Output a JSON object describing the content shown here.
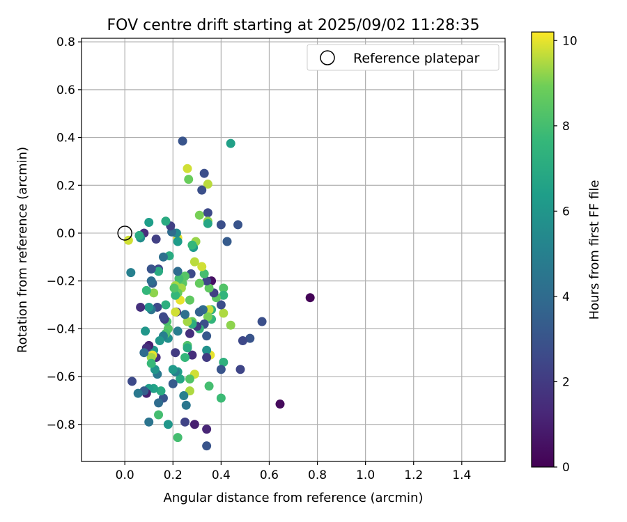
{
  "chart_data": {
    "type": "scatter",
    "title": "FOV centre drift starting at 2025/09/02 11:28:35",
    "xlabel": "Angular distance from reference (arcmin)",
    "ylabel": "Rotation from reference (arcmin)",
    "xlim": [
      -0.18,
      1.58
    ],
    "ylim": [
      -0.955,
      0.815
    ],
    "x_ticks": [
      0.0,
      0.2,
      0.4,
      0.6,
      0.8,
      1.0,
      1.2,
      1.4
    ],
    "x_tick_labels": [
      "0.0",
      "0.2",
      "0.4",
      "0.6",
      "0.8",
      "1.0",
      "1.2",
      "1.4"
    ],
    "y_ticks": [
      0.8,
      0.6,
      0.4,
      0.2,
      0.0,
      -0.2,
      -0.4,
      -0.6,
      -0.8
    ],
    "y_tick_labels": [
      "0.8",
      "0.6",
      "0.4",
      "0.2",
      "0.0",
      "−0.2",
      "−0.4",
      "−0.6",
      "−0.8"
    ],
    "grid": true,
    "legend": {
      "position": "top-right",
      "entries": [
        "Reference platepar"
      ]
    },
    "reference_point": {
      "x": 0.0,
      "y": 0.0,
      "label": "Reference platepar"
    },
    "colorbar": {
      "label": "Hours from first FF file",
      "min": 0,
      "max": 10.2,
      "ticks": [
        0,
        2,
        4,
        6,
        8,
        10
      ],
      "tick_labels": [
        "0",
        "2",
        "4",
        "6",
        "8",
        "10"
      ],
      "colormap": "viridis"
    },
    "points": [
      {
        "x": 0.77,
        "y": -0.27,
        "h": 0.1
      },
      {
        "x": 0.645,
        "y": -0.715,
        "h": 0.3
      },
      {
        "x": 0.57,
        "y": -0.37,
        "h": 2.8
      },
      {
        "x": 0.52,
        "y": -0.44,
        "h": 3.0
      },
      {
        "x": 0.49,
        "y": -0.45,
        "h": 2.5
      },
      {
        "x": 0.48,
        "y": -0.57,
        "h": 2.4
      },
      {
        "x": 0.47,
        "y": 0.035,
        "h": 3.0
      },
      {
        "x": 0.44,
        "y": 0.375,
        "h": 6.5
      },
      {
        "x": 0.44,
        "y": -0.385,
        "h": 9.2
      },
      {
        "x": 0.425,
        "y": -0.035,
        "h": 3.3
      },
      {
        "x": 0.41,
        "y": -0.23,
        "h": 8.3
      },
      {
        "x": 0.41,
        "y": -0.26,
        "h": 7.5
      },
      {
        "x": 0.41,
        "y": -0.335,
        "h": 9.5
      },
      {
        "x": 0.41,
        "y": -0.54,
        "h": 7.3
      },
      {
        "x": 0.4,
        "y": 0.035,
        "h": 2.8
      },
      {
        "x": 0.4,
        "y": -0.3,
        "h": 2.7
      },
      {
        "x": 0.4,
        "y": -0.57,
        "h": 3.0
      },
      {
        "x": 0.4,
        "y": -0.69,
        "h": 7.8
      },
      {
        "x": 0.38,
        "y": -0.27,
        "h": 8.5
      },
      {
        "x": 0.37,
        "y": -0.25,
        "h": 2.2
      },
      {
        "x": 0.36,
        "y": -0.2,
        "h": 0.5
      },
      {
        "x": 0.36,
        "y": -0.32,
        "h": 7.4
      },
      {
        "x": 0.36,
        "y": -0.36,
        "h": 7.5
      },
      {
        "x": 0.355,
        "y": -0.51,
        "h": 10.0
      },
      {
        "x": 0.35,
        "y": -0.23,
        "h": 8.6
      },
      {
        "x": 0.35,
        "y": -0.32,
        "h": 9.7
      },
      {
        "x": 0.35,
        "y": -0.64,
        "h": 8.0
      },
      {
        "x": 0.345,
        "y": 0.205,
        "h": 9.6
      },
      {
        "x": 0.345,
        "y": 0.085,
        "h": 2.6
      },
      {
        "x": 0.345,
        "y": 0.05,
        "h": 9.2
      },
      {
        "x": 0.345,
        "y": 0.04,
        "h": 6.8
      },
      {
        "x": 0.345,
        "y": -0.35,
        "h": 9.0
      },
      {
        "x": 0.34,
        "y": -0.2,
        "h": 2.4
      },
      {
        "x": 0.34,
        "y": -0.43,
        "h": 3.2
      },
      {
        "x": 0.34,
        "y": -0.49,
        "h": 5.8
      },
      {
        "x": 0.34,
        "y": -0.52,
        "h": 2.0
      },
      {
        "x": 0.34,
        "y": -0.82,
        "h": 1.2
      },
      {
        "x": 0.34,
        "y": -0.89,
        "h": 3.0
      },
      {
        "x": 0.33,
        "y": 0.25,
        "h": 2.8
      },
      {
        "x": 0.33,
        "y": -0.17,
        "h": 8.0
      },
      {
        "x": 0.33,
        "y": -0.38,
        "h": 2.8
      },
      {
        "x": 0.325,
        "y": -0.32,
        "h": 4.0
      },
      {
        "x": 0.32,
        "y": 0.18,
        "h": 2.8
      },
      {
        "x": 0.32,
        "y": -0.14,
        "h": 9.8
      },
      {
        "x": 0.31,
        "y": 0.075,
        "h": 9.0
      },
      {
        "x": 0.31,
        "y": -0.21,
        "h": 8.7
      },
      {
        "x": 0.31,
        "y": -0.33,
        "h": 3.6
      },
      {
        "x": 0.31,
        "y": -0.4,
        "h": 7.6
      },
      {
        "x": 0.3,
        "y": -0.39,
        "h": 2.0
      },
      {
        "x": 0.295,
        "y": -0.035,
        "h": 9.3
      },
      {
        "x": 0.29,
        "y": -0.12,
        "h": 9.6
      },
      {
        "x": 0.29,
        "y": -0.59,
        "h": 9.8
      },
      {
        "x": 0.29,
        "y": -0.8,
        "h": 1.0
      },
      {
        "x": 0.285,
        "y": -0.06,
        "h": 6.2
      },
      {
        "x": 0.28,
        "y": -0.05,
        "h": 7.6
      },
      {
        "x": 0.28,
        "y": -0.37,
        "h": 8.8
      },
      {
        "x": 0.28,
        "y": -0.38,
        "h": 7.2
      },
      {
        "x": 0.28,
        "y": -0.51,
        "h": 1.5
      },
      {
        "x": 0.275,
        "y": -0.17,
        "h": 2.6
      },
      {
        "x": 0.27,
        "y": -0.28,
        "h": 8.6
      },
      {
        "x": 0.27,
        "y": -0.42,
        "h": 1.6
      },
      {
        "x": 0.27,
        "y": -0.61,
        "h": 8.3
      },
      {
        "x": 0.27,
        "y": -0.66,
        "h": 9.5
      },
      {
        "x": 0.265,
        "y": 0.225,
        "h": 8.8
      },
      {
        "x": 0.26,
        "y": -0.37,
        "h": 9.4
      },
      {
        "x": 0.26,
        "y": -0.47,
        "h": 8.2
      },
      {
        "x": 0.26,
        "y": -0.48,
        "h": 7.0
      },
      {
        "x": 0.26,
        "y": 0.27,
        "h": 9.8
      },
      {
        "x": 0.255,
        "y": -0.72,
        "h": 4.5
      },
      {
        "x": 0.25,
        "y": -0.18,
        "h": 8.4
      },
      {
        "x": 0.25,
        "y": -0.34,
        "h": 4.2
      },
      {
        "x": 0.25,
        "y": -0.52,
        "h": 7.6
      },
      {
        "x": 0.25,
        "y": -0.79,
        "h": 2.3
      },
      {
        "x": 0.245,
        "y": -0.68,
        "h": 5.0
      },
      {
        "x": 0.24,
        "y": 0.385,
        "h": 3.0
      },
      {
        "x": 0.24,
        "y": -0.21,
        "h": 8.5
      },
      {
        "x": 0.235,
        "y": -0.23,
        "h": 9.4
      },
      {
        "x": 0.23,
        "y": -0.28,
        "h": 10.0
      },
      {
        "x": 0.23,
        "y": -0.61,
        "h": 6.8
      },
      {
        "x": 0.225,
        "y": -0.19,
        "h": 8.0
      },
      {
        "x": 0.22,
        "y": -0.02,
        "h": 10.0
      },
      {
        "x": 0.22,
        "y": -0.035,
        "h": 6.3
      },
      {
        "x": 0.22,
        "y": -0.16,
        "h": 4.0
      },
      {
        "x": 0.22,
        "y": -0.25,
        "h": 8.8
      },
      {
        "x": 0.22,
        "y": -0.41,
        "h": 4.8
      },
      {
        "x": 0.22,
        "y": -0.58,
        "h": 6.4
      },
      {
        "x": 0.22,
        "y": -0.855,
        "h": 8.0
      },
      {
        "x": 0.215,
        "y": 0.0,
        "h": 5.5
      },
      {
        "x": 0.215,
        "y": -0.33,
        "h": 2.0
      },
      {
        "x": 0.21,
        "y": -0.22,
        "h": 9.4
      },
      {
        "x": 0.21,
        "y": -0.26,
        "h": 7.6
      },
      {
        "x": 0.21,
        "y": -0.33,
        "h": 9.8
      },
      {
        "x": 0.21,
        "y": -0.5,
        "h": 2.0
      },
      {
        "x": 0.21,
        "y": -0.58,
        "h": 5.0
      },
      {
        "x": 0.205,
        "y": -0.23,
        "h": 8.3
      },
      {
        "x": 0.2,
        "y": -0.57,
        "h": 6.2
      },
      {
        "x": 0.2,
        "y": -0.63,
        "h": 3.3
      },
      {
        "x": 0.195,
        "y": 0.005,
        "h": 4.0
      },
      {
        "x": 0.19,
        "y": 0.03,
        "h": 2.2
      },
      {
        "x": 0.185,
        "y": -0.095,
        "h": 7.0
      },
      {
        "x": 0.18,
        "y": -0.4,
        "h": 8.5
      },
      {
        "x": 0.18,
        "y": -0.44,
        "h": 5.7
      },
      {
        "x": 0.18,
        "y": -0.8,
        "h": 6.0
      },
      {
        "x": 0.175,
        "y": -0.37,
        "h": 8.2
      },
      {
        "x": 0.17,
        "y": 0.05,
        "h": 7.0
      },
      {
        "x": 0.17,
        "y": -0.3,
        "h": 7.2
      },
      {
        "x": 0.17,
        "y": -0.42,
        "h": 8.2
      },
      {
        "x": 0.165,
        "y": -0.36,
        "h": 2.2
      },
      {
        "x": 0.16,
        "y": -0.1,
        "h": 4.2
      },
      {
        "x": 0.16,
        "y": -0.35,
        "h": 2.6
      },
      {
        "x": 0.16,
        "y": -0.43,
        "h": 5.0
      },
      {
        "x": 0.16,
        "y": -0.69,
        "h": 3.0
      },
      {
        "x": 0.15,
        "y": -0.66,
        "h": 7.0
      },
      {
        "x": 0.145,
        "y": -0.45,
        "h": 6.0
      },
      {
        "x": 0.14,
        "y": -0.15,
        "h": 2.6
      },
      {
        "x": 0.14,
        "y": -0.16,
        "h": 7.0
      },
      {
        "x": 0.14,
        "y": -0.71,
        "h": 4.0
      },
      {
        "x": 0.14,
        "y": -0.76,
        "h": 8.0
      },
      {
        "x": 0.135,
        "y": -0.31,
        "h": 2.6
      },
      {
        "x": 0.135,
        "y": -0.59,
        "h": 4.6
      },
      {
        "x": 0.13,
        "y": -0.025,
        "h": 2.2
      },
      {
        "x": 0.13,
        "y": -0.52,
        "h": 1.5
      },
      {
        "x": 0.125,
        "y": -0.57,
        "h": 6.0
      },
      {
        "x": 0.12,
        "y": -0.25,
        "h": 9.2
      },
      {
        "x": 0.12,
        "y": -0.49,
        "h": 6.0
      },
      {
        "x": 0.12,
        "y": -0.65,
        "h": 6.6
      },
      {
        "x": 0.115,
        "y": -0.21,
        "h": 3.4
      },
      {
        "x": 0.115,
        "y": -0.51,
        "h": 10.0
      },
      {
        "x": 0.11,
        "y": -0.15,
        "h": 3.0
      },
      {
        "x": 0.11,
        "y": -0.2,
        "h": 4.0
      },
      {
        "x": 0.11,
        "y": -0.32,
        "h": 4.4
      },
      {
        "x": 0.11,
        "y": -0.52,
        "h": 9.4
      },
      {
        "x": 0.11,
        "y": -0.545,
        "h": 7.7
      },
      {
        "x": 0.1,
        "y": 0.045,
        "h": 6.4
      },
      {
        "x": 0.1,
        "y": -0.31,
        "h": 6.0
      },
      {
        "x": 0.1,
        "y": -0.47,
        "h": 1.0
      },
      {
        "x": 0.1,
        "y": -0.79,
        "h": 4.4
      },
      {
        "x": 0.1,
        "y": -0.65,
        "h": 6.3
      },
      {
        "x": 0.09,
        "y": -0.24,
        "h": 7.6
      },
      {
        "x": 0.09,
        "y": -0.48,
        "h": 1.6
      },
      {
        "x": 0.09,
        "y": -0.67,
        "h": 1.0
      },
      {
        "x": 0.085,
        "y": -0.41,
        "h": 6.0
      },
      {
        "x": 0.08,
        "y": 0.0,
        "h": 1.5
      },
      {
        "x": 0.08,
        "y": -0.5,
        "h": 4.0
      },
      {
        "x": 0.08,
        "y": -0.66,
        "h": 3.4
      },
      {
        "x": 0.065,
        "y": -0.02,
        "h": 5.6
      },
      {
        "x": 0.065,
        "y": -0.31,
        "h": 1.6
      },
      {
        "x": 0.06,
        "y": -0.01,
        "h": 7.0
      },
      {
        "x": 0.055,
        "y": -0.67,
        "h": 4.6
      },
      {
        "x": 0.03,
        "y": -0.62,
        "h": 2.6
      },
      {
        "x": 0.025,
        "y": -0.165,
        "h": 5.0
      },
      {
        "x": 0.015,
        "y": -0.03,
        "h": 9.8
      }
    ]
  }
}
